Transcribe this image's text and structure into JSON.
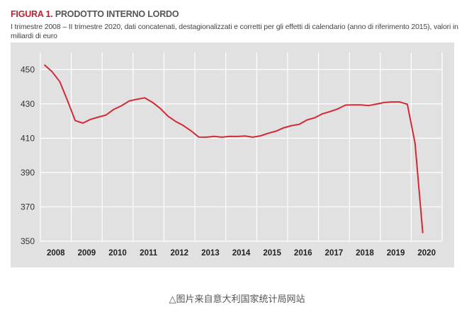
{
  "figure": {
    "prefix": "FIGURA 1.",
    "title": "PRODOTTO INTERNO LORDO",
    "subtitle": "I trimestre 2008 – II trimestre 2020, dati concatenati, destagionalizzati e corretti per gli effetti di calendario (anno di riferimento 2015), valori in miliardi di euro"
  },
  "caption": {
    "icon": "triangle-outline-icon",
    "text": "图片来自意大利国家统计局网站"
  },
  "colors": {
    "line": "#d22a35",
    "plot_bg": "#e1e1e1",
    "grid": "#ffffff",
    "title_accent": "#c0202e"
  },
  "chart_data": {
    "type": "line",
    "title": "PRODOTTO INTERNO LORDO",
    "ylim": [
      350,
      460
    ],
    "yticks": [
      350,
      370,
      390,
      410,
      430,
      450
    ],
    "xlim": [
      2008.0,
      2021.0
    ],
    "xticks": [
      "2008",
      "2009",
      "2010",
      "2011",
      "2012",
      "2013",
      "2014",
      "2015",
      "2016",
      "2017",
      "2018",
      "2019",
      "2020"
    ],
    "grid": true,
    "series": [
      {
        "x": [
          2008.125,
          2008.375,
          2008.625,
          2008.875,
          2009.125,
          2009.375,
          2009.625,
          2009.875,
          2010.125,
          2010.375,
          2010.625,
          2010.875,
          2011.125,
          2011.375,
          2011.625,
          2011.875,
          2012.125,
          2012.375,
          2012.625,
          2012.875,
          2013.125,
          2013.375,
          2013.625,
          2013.875,
          2014.125,
          2014.375,
          2014.625,
          2014.875,
          2015.125,
          2015.375,
          2015.625,
          2015.875,
          2016.125,
          2016.375,
          2016.625,
          2016.875,
          2017.125,
          2017.375,
          2017.625,
          2017.875,
          2018.125,
          2018.375,
          2018.625,
          2018.875,
          2019.125,
          2019.375,
          2019.625,
          2019.875,
          2020.125,
          2020.375
        ],
        "values": [
          452.8,
          448.8,
          443.0,
          432.0,
          420.3,
          418.8,
          421.0,
          422.3,
          423.5,
          426.8,
          428.9,
          431.7,
          432.7,
          433.5,
          430.9,
          427.4,
          422.9,
          419.8,
          417.4,
          414.3,
          410.7,
          410.6,
          411.1,
          410.6,
          411.1,
          411.0,
          411.3,
          410.6,
          411.4,
          412.9,
          414.1,
          416.1,
          417.3,
          418.1,
          420.6,
          421.9,
          424.2,
          425.5,
          427.1,
          429.3,
          429.4,
          429.4,
          429.0,
          429.9,
          430.8,
          431.1,
          431.1,
          429.8,
          407.1,
          354.7
        ]
      }
    ]
  }
}
